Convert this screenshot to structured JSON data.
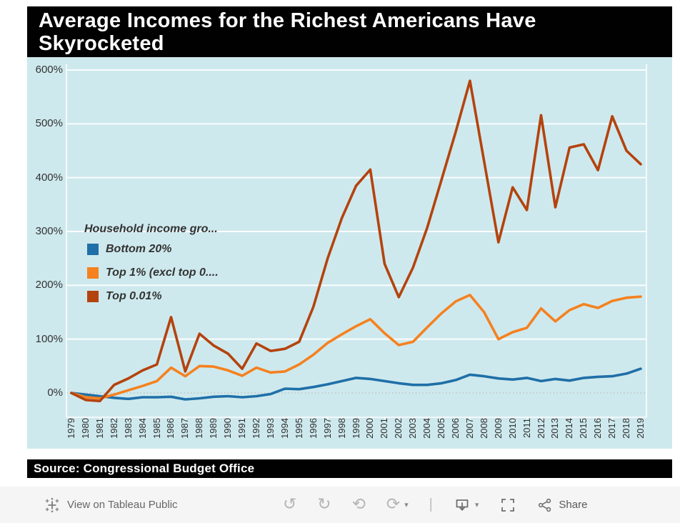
{
  "title": {
    "lines": [
      "Average Incomes for the Richest Americans Have",
      "Skyrocketed"
    ]
  },
  "source_bar": {
    "text": "Source: Congressional Budget Office"
  },
  "toolbar": {
    "view_on_label": "View on Tableau Public",
    "share_label": "Share",
    "glyphs": {
      "undo": "↺",
      "redo": "↻",
      "reset": "⟲",
      "refresh": "⟳",
      "caret": "▾",
      "separator": "|"
    },
    "icons": [
      "tableau-logo",
      "undo",
      "redo",
      "reset",
      "refresh",
      "caret-down",
      "download",
      "fullscreen",
      "share"
    ]
  },
  "colors": {
    "chart_background": "#cee9ed",
    "bottom20": "#1f6fa8",
    "top1": "#f5811f",
    "top001": "#b4430e",
    "gridline": "#ffffff",
    "zero_line": "#c0c0c0",
    "axis_text": "#323232",
    "banner_background": "#010101"
  },
  "chart_data": {
    "type": "line",
    "title": "Average Incomes for the Richest Americans Have Skyrocketed",
    "xlabel": "",
    "ylabel": "",
    "grid": true,
    "ylim": [
      -50,
      620
    ],
    "legend": {
      "title": "Household income gro...",
      "position": "middle-left"
    },
    "y_axis": {
      "ticks": [
        {
          "label": "0%",
          "value": 0
        },
        {
          "label": "100%",
          "value": 100
        },
        {
          "label": "200%",
          "value": 200
        },
        {
          "label": "300%",
          "value": 300
        },
        {
          "label": "400%",
          "value": 400
        },
        {
          "label": "500%",
          "value": 500
        },
        {
          "label": "600%",
          "value": 600
        }
      ]
    },
    "x": [
      1979,
      1980,
      1981,
      1982,
      1983,
      1984,
      1985,
      1986,
      1987,
      1988,
      1989,
      1990,
      1991,
      1992,
      1993,
      1994,
      1995,
      1996,
      1997,
      1998,
      1999,
      2000,
      2001,
      2002,
      2003,
      2004,
      2005,
      2006,
      2007,
      2008,
      2009,
      2010,
      2011,
      2012,
      2013,
      2014,
      2015,
      2016,
      2017,
      2018,
      2019
    ],
    "series": [
      {
        "name": "Bottom 20%",
        "color": "#1f6fa8",
        "values": [
          0,
          -3,
          -6,
          -9,
          -11,
          -8,
          -8,
          -7,
          -12,
          -10,
          -7,
          -6,
          -8,
          -6,
          -2,
          8,
          7,
          11,
          16,
          22,
          28,
          26,
          22,
          18,
          15,
          15,
          18,
          24,
          34,
          31,
          27,
          25,
          28,
          22,
          26,
          23,
          28,
          30,
          31,
          36,
          45
        ]
      },
      {
        "name": "Top 1% (excl top 0....",
        "color": "#f5811f",
        "values": [
          0,
          -8,
          -10,
          -3,
          5,
          13,
          22,
          47,
          31,
          50,
          49,
          42,
          32,
          47,
          38,
          40,
          53,
          71,
          93,
          109,
          124,
          137,
          111,
          89,
          95,
          122,
          148,
          170,
          182,
          150,
          100,
          113,
          121,
          157,
          133,
          154,
          165,
          158,
          171,
          177,
          179
        ]
      },
      {
        "name": "Top 0.01%",
        "color": "#b4430e",
        "values": [
          0,
          -13,
          -15,
          15,
          27,
          42,
          53,
          141,
          40,
          110,
          88,
          73,
          45,
          92,
          78,
          82,
          95,
          160,
          250,
          325,
          385,
          415,
          240,
          178,
          233,
          307,
          396,
          485,
          580,
          430,
          280,
          382,
          340,
          516,
          345,
          456,
          462,
          414,
          514,
          450,
          425
        ]
      }
    ]
  }
}
